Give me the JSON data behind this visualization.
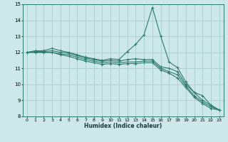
{
  "xlabel": "Humidex (Indice chaleur)",
  "ylabel": "",
  "xlim": [
    -0.5,
    23.5
  ],
  "ylim": [
    8,
    15
  ],
  "bg_color": "#cce8e8",
  "grid_color": "#aacccc",
  "line_color": "#2d7a6e",
  "x_ticks": [
    0,
    1,
    2,
    3,
    4,
    5,
    6,
    7,
    8,
    9,
    10,
    11,
    12,
    13,
    14,
    15,
    16,
    17,
    18,
    19,
    20,
    21,
    22,
    23
  ],
  "y_ticks": [
    8,
    9,
    10,
    11,
    12,
    13,
    14,
    15
  ],
  "curves": [
    [
      12.0,
      12.1,
      12.1,
      12.25,
      12.1,
      12.0,
      11.85,
      11.7,
      11.6,
      11.5,
      11.6,
      11.55,
      12.05,
      12.5,
      13.1,
      14.8,
      13.0,
      11.4,
      11.05,
      10.15,
      9.5,
      9.3,
      8.7,
      8.4
    ],
    [
      12.0,
      12.05,
      12.05,
      12.1,
      12.0,
      11.95,
      11.8,
      11.65,
      11.55,
      11.45,
      11.5,
      11.45,
      11.55,
      11.6,
      11.55,
      11.55,
      11.1,
      11.0,
      10.8,
      10.0,
      9.5,
      9.0,
      8.7,
      8.4
    ],
    [
      12.0,
      12.0,
      12.0,
      12.0,
      11.9,
      11.85,
      11.7,
      11.55,
      11.45,
      11.35,
      11.4,
      11.35,
      11.4,
      11.4,
      11.45,
      11.45,
      11.0,
      10.8,
      10.6,
      9.9,
      9.3,
      8.9,
      8.6,
      8.4
    ],
    [
      12.0,
      12.0,
      12.0,
      12.0,
      11.85,
      11.75,
      11.6,
      11.45,
      11.35,
      11.25,
      11.3,
      11.25,
      11.3,
      11.3,
      11.35,
      11.35,
      10.9,
      10.7,
      10.4,
      9.8,
      9.2,
      8.8,
      8.5,
      8.4
    ]
  ]
}
